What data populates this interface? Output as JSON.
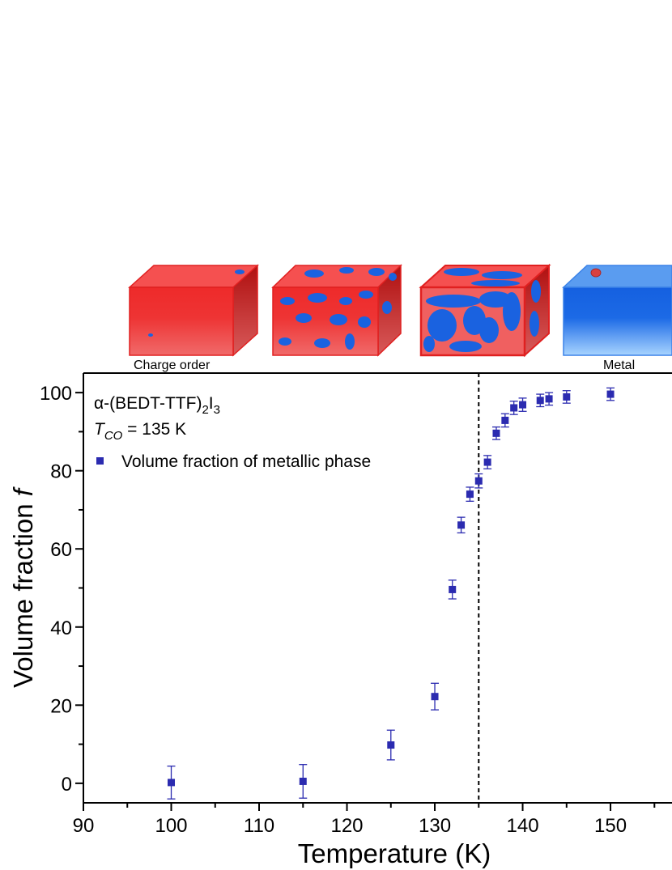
{
  "chart_data": {
    "type": "scatter",
    "title": "",
    "xlabel": "Temperature (K)",
    "ylabel": "Volume fraction",
    "ylabel_symbol": "f",
    "xlim": [
      90,
      157
    ],
    "ylim": [
      -5,
      105
    ],
    "x_ticks": [
      90,
      100,
      110,
      120,
      130,
      140,
      150
    ],
    "y_ticks": [
      0,
      20,
      40,
      60,
      80,
      100
    ],
    "grid": false,
    "legend_position": "top-left",
    "annotations": {
      "compound": "α-(BEDT-TTF)₂I₃",
      "tco_symbol": "T",
      "tco_subscript": "CO",
      "tco_value": "= 135 K"
    },
    "vertical_line": {
      "x": 135,
      "style": "dashed"
    },
    "series": [
      {
        "name": "Volume fraction of metallic phase",
        "color": "#2b2bb0",
        "marker": "square",
        "points": [
          {
            "x": 100,
            "y": 0.2,
            "err": 4.2
          },
          {
            "x": 115,
            "y": 0.5,
            "err": 4.3
          },
          {
            "x": 125,
            "y": 9.8,
            "err": 3.8
          },
          {
            "x": 130,
            "y": 22.2,
            "err": 3.4
          },
          {
            "x": 132,
            "y": 49.6,
            "err": 2.4
          },
          {
            "x": 133,
            "y": 66.1,
            "err": 2.0
          },
          {
            "x": 134,
            "y": 74.0,
            "err": 1.8
          },
          {
            "x": 135,
            "y": 77.4,
            "err": 1.8
          },
          {
            "x": 136,
            "y": 82.2,
            "err": 1.7
          },
          {
            "x": 137,
            "y": 89.6,
            "err": 1.6
          },
          {
            "x": 138,
            "y": 92.9,
            "err": 1.7
          },
          {
            "x": 139,
            "y": 96.1,
            "err": 1.7
          },
          {
            "x": 140,
            "y": 96.9,
            "err": 1.7
          },
          {
            "x": 142,
            "y": 98.0,
            "err": 1.6
          },
          {
            "x": 143,
            "y": 98.4,
            "err": 1.6
          },
          {
            "x": 145,
            "y": 98.9,
            "err": 1.6
          },
          {
            "x": 150,
            "y": 99.6,
            "err": 1.6
          }
        ]
      }
    ]
  },
  "illustration": {
    "labels": {
      "charge_order": "Charge order",
      "metal": "Metal"
    },
    "colors": {
      "red": "#f03a3a",
      "red_dark": "#b81818",
      "blue": "#1a62e0",
      "blue_light": "#8fc3ff"
    }
  }
}
